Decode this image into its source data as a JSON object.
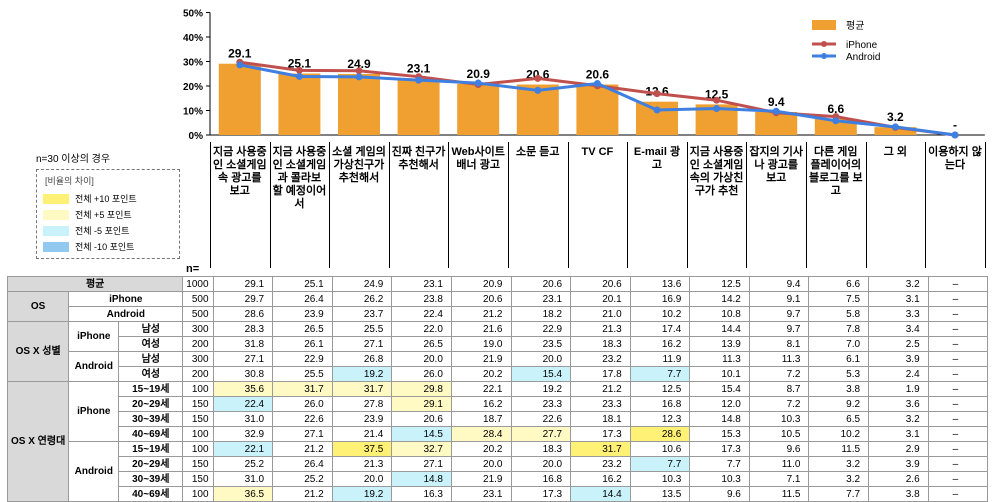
{
  "chart_data": {
    "type": "bar",
    "title": "",
    "yaxis_ticks": [
      "0%",
      "10%",
      "20%",
      "30%",
      "40%",
      "50%"
    ],
    "ylim": [
      0,
      50
    ],
    "categories": [
      "지금 사용중인 소셜게임 속 광고를 보고",
      "지금 사용중인 소셜게임과 콜라보 할 예정이어서",
      "소셜 게임의 가상친구가 추천해서",
      "진짜 친구가 추천해서",
      "Web사이트 배너 광고",
      "소문 듣고",
      "TV CF",
      "E-mail 광고",
      "지금 사용중인 소셜게임 속의 가상친구가 추천",
      "잡지의 기사나 광고를 보고",
      "다른 게임 플레이어의 블로그를 보고",
      "그 외",
      "이용하지 않는다"
    ],
    "series": [
      {
        "name": "평균",
        "kind": "bar",
        "color": "#f0a030",
        "values": [
          29.1,
          25.1,
          24.9,
          23.1,
          20.9,
          20.6,
          20.6,
          13.6,
          12.5,
          9.4,
          6.6,
          3.2,
          0
        ],
        "labels": [
          "29.1",
          "25.1",
          "24.9",
          "23.1",
          "20.9",
          "20.6",
          "20.6",
          "13.6",
          "12.5",
          "9.4",
          "6.6",
          "3.2",
          "-"
        ]
      },
      {
        "name": "iPhone",
        "kind": "line",
        "color": "#c0504d",
        "values": [
          29.7,
          26.4,
          26.2,
          23.8,
          20.6,
          23.1,
          20.1,
          16.9,
          14.2,
          9.1,
          7.5,
          3.1,
          0
        ]
      },
      {
        "name": "Android",
        "kind": "line",
        "color": "#3f7fe0",
        "values": [
          28.6,
          23.9,
          23.7,
          22.4,
          21.2,
          18.2,
          21.0,
          10.2,
          10.8,
          9.7,
          5.8,
          3.3,
          0
        ]
      }
    ],
    "legend_placement": "top-right",
    "grid": false
  },
  "note": "n=30 이상의 경우",
  "diff_legend": {
    "title": "[비율의 차이]",
    "items": [
      {
        "label": "전체 +10 포인트",
        "color": "#fff176"
      },
      {
        "label": "전체 +5 포인트",
        "color": "#fff9c4"
      },
      {
        "label": "전체 -5 포인트",
        "color": "#c9f2fb"
      },
      {
        "label": "전체 -10 포인트",
        "color": "#90c8f0"
      }
    ]
  },
  "n_label": "n=",
  "table": {
    "rows": [
      {
        "g1": "",
        "g2": "",
        "g3": "평균",
        "n": "1000",
        "v": [
          "29.1",
          "25.1",
          "24.9",
          "23.1",
          "20.9",
          "20.6",
          "20.6",
          "13.6",
          "12.5",
          "9.4",
          "6.6",
          "3.2",
          "–"
        ],
        "hl": []
      },
      {
        "g1": "OS",
        "g2": "iPhone",
        "g3": "",
        "n": "500",
        "v": [
          "29.7",
          "26.4",
          "26.2",
          "23.8",
          "20.6",
          "23.1",
          "20.1",
          "16.9",
          "14.2",
          "9.1",
          "7.5",
          "3.1",
          "–"
        ],
        "hl": []
      },
      {
        "g1": "",
        "g2": "Android",
        "g3": "",
        "n": "500",
        "v": [
          "28.6",
          "23.9",
          "23.7",
          "22.4",
          "21.2",
          "18.2",
          "21.0",
          "10.2",
          "10.8",
          "9.7",
          "5.8",
          "3.3",
          "–"
        ],
        "hl": []
      },
      {
        "g1": "OS X 성별",
        "g2": "iPhone",
        "g3": "남성",
        "n": "300",
        "v": [
          "28.3",
          "26.5",
          "25.5",
          "22.0",
          "21.6",
          "22.9",
          "21.3",
          "17.4",
          "14.4",
          "9.7",
          "7.8",
          "3.4",
          "–"
        ],
        "hl": []
      },
      {
        "g1": "",
        "g2": "",
        "g3": "여성",
        "n": "200",
        "v": [
          "31.8",
          "26.1",
          "27.1",
          "26.5",
          "19.0",
          "23.5",
          "18.3",
          "16.2",
          "13.9",
          "8.1",
          "7.0",
          "2.5",
          "–"
        ],
        "hl": []
      },
      {
        "g1": "",
        "g2": "Android",
        "g3": "남성",
        "n": "300",
        "v": [
          "27.1",
          "22.9",
          "26.8",
          "20.0",
          "21.9",
          "20.0",
          "23.2",
          "11.9",
          "11.3",
          "11.3",
          "6.1",
          "3.9",
          "–"
        ],
        "hl": []
      },
      {
        "g1": "",
        "g2": "",
        "g3": "여성",
        "n": "200",
        "v": [
          "30.8",
          "25.5",
          "19.2",
          "26.0",
          "20.2",
          "15.4",
          "17.8",
          "7.7",
          "10.1",
          "7.2",
          "5.3",
          "2.4",
          "–"
        ],
        "hl": [
          [
            2,
            "loC"
          ],
          [
            5,
            "loC"
          ],
          [
            7,
            "loC"
          ]
        ]
      },
      {
        "g1": "OS X 연령대",
        "g2": "iPhone",
        "g3": "15~19세",
        "n": "100",
        "v": [
          "35.6",
          "31.7",
          "31.7",
          "29.8",
          "22.1",
          "19.2",
          "21.2",
          "12.5",
          "15.4",
          "8.7",
          "3.8",
          "1.9",
          "–"
        ],
        "hl": [
          [
            0,
            "hiy"
          ],
          [
            1,
            "hiy"
          ],
          [
            2,
            "hiy"
          ],
          [
            3,
            "hiy"
          ]
        ]
      },
      {
        "g1": "",
        "g2": "",
        "g3": "20~29세",
        "n": "150",
        "v": [
          "22.4",
          "26.0",
          "27.8",
          "29.1",
          "16.2",
          "23.3",
          "23.3",
          "16.8",
          "12.0",
          "7.2",
          "9.2",
          "3.6",
          "–"
        ],
        "hl": [
          [
            0,
            "loC"
          ],
          [
            3,
            "hiy"
          ]
        ]
      },
      {
        "g1": "",
        "g2": "",
        "g3": "30~39세",
        "n": "150",
        "v": [
          "31.0",
          "22.6",
          "23.9",
          "20.6",
          "18.7",
          "22.6",
          "18.1",
          "12.3",
          "14.8",
          "10.3",
          "6.5",
          "3.2",
          "–"
        ],
        "hl": []
      },
      {
        "g1": "",
        "g2": "",
        "g3": "40~69세",
        "n": "100",
        "v": [
          "32.9",
          "27.1",
          "21.4",
          "14.5",
          "28.4",
          "27.7",
          "17.3",
          "28.6",
          "15.3",
          "10.5",
          "10.2",
          "3.1",
          "–"
        ],
        "hl": [
          [
            3,
            "loC"
          ],
          [
            4,
            "hiy"
          ],
          [
            5,
            "hiy"
          ],
          [
            7,
            "hiY"
          ]
        ]
      },
      {
        "g1": "",
        "g2": "Android",
        "g3": "15~19세",
        "n": "100",
        "v": [
          "22.1",
          "21.2",
          "37.5",
          "32.7",
          "20.2",
          "18.3",
          "31.7",
          "10.6",
          "17.3",
          "9.6",
          "11.5",
          "2.9",
          "–"
        ],
        "hl": [
          [
            0,
            "loC"
          ],
          [
            2,
            "hiY"
          ],
          [
            3,
            "hiy"
          ],
          [
            6,
            "hiY"
          ]
        ]
      },
      {
        "g1": "",
        "g2": "",
        "g3": "20~29세",
        "n": "150",
        "v": [
          "25.2",
          "26.4",
          "21.3",
          "27.1",
          "20.0",
          "20.0",
          "23.2",
          "7.7",
          "7.7",
          "11.0",
          "3.2",
          "3.9",
          "–"
        ],
        "hl": [
          [
            7,
            "loC"
          ]
        ]
      },
      {
        "g1": "",
        "g2": "",
        "g3": "30~39세",
        "n": "150",
        "v": [
          "31.0",
          "25.2",
          "20.0",
          "14.8",
          "21.9",
          "16.8",
          "16.2",
          "10.3",
          "10.3",
          "7.1",
          "3.2",
          "2.6",
          "–"
        ],
        "hl": [
          [
            3,
            "loC"
          ]
        ]
      },
      {
        "g1": "",
        "g2": "",
        "g3": "40~69세",
        "n": "100",
        "v": [
          "36.5",
          "21.2",
          "19.2",
          "16.3",
          "23.1",
          "17.3",
          "14.4",
          "13.5",
          "9.6",
          "11.5",
          "7.7",
          "3.8",
          "–"
        ],
        "hl": [
          [
            0,
            "hiy"
          ],
          [
            2,
            "loC"
          ],
          [
            6,
            "loC"
          ]
        ]
      }
    ]
  }
}
